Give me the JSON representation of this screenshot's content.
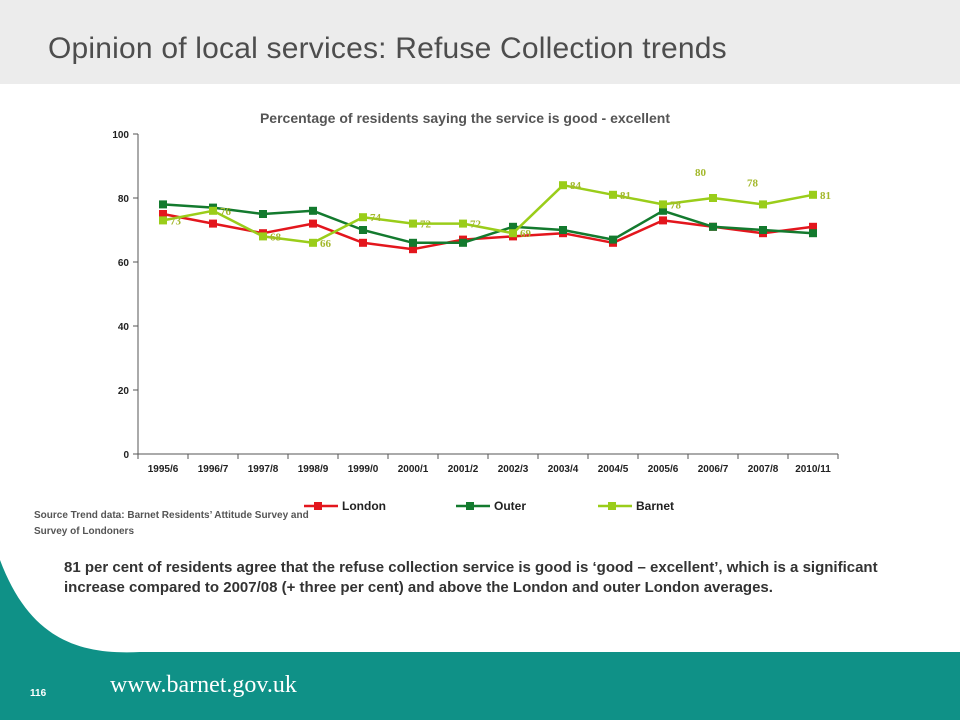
{
  "slide": {
    "title": "Opinion of local services: Refuse Collection trends",
    "source": "Source Trend data:  Barnet  Residents’ Attitude  Survey and Survey of Londoners",
    "summary": "81 per cent of residents agree that the refuse collection service is good is  ‘good – excellent’, which is  a significant increase compared to 2007/08 (+ three per cent) and above the London and outer London averages.",
    "footer_url": "www.barnet.gov.uk",
    "page_number": "116"
  },
  "colors": {
    "title_band": "#ececec",
    "teal": "#0f9187",
    "London": "#e3161d",
    "Outer": "#137a2e",
    "Barnet": "#9acd1a",
    "Barnet_label": "#a3b82b"
  },
  "chart_data": {
    "type": "line",
    "title": "Percentage of residents saying the service is good - excellent",
    "xlabel": "",
    "ylabel": "",
    "categories": [
      "1995/6",
      "1996/7",
      "1997/8",
      "1998/9",
      "1999/0",
      "2000/1",
      "2001/2",
      "2002/3",
      "2003/4",
      "2004/5",
      "2005/6",
      "2006/7",
      "2007/8",
      "2010/11"
    ],
    "ylim": [
      0,
      100
    ],
    "yticks": [
      0,
      20,
      40,
      60,
      80,
      100
    ],
    "grid": false,
    "legend": "bottom",
    "series": [
      {
        "name": "London",
        "values": [
          75,
          72,
          69,
          72,
          66,
          64,
          67,
          68,
          69,
          66,
          73,
          71,
          69,
          71
        ]
      },
      {
        "name": "Outer",
        "values": [
          78,
          77,
          75,
          76,
          70,
          66,
          66,
          71,
          70,
          67,
          76,
          71,
          70,
          69
        ]
      },
      {
        "name": "Barnet",
        "values": [
          73,
          76,
          68,
          66,
          74,
          72,
          72,
          69,
          84,
          81,
          78,
          80,
          78,
          81
        ]
      }
    ],
    "data_labels": {
      "series": "Barnet",
      "values": [
        "73",
        "76",
        "68",
        "66",
        "74",
        "72",
        "72",
        "69",
        "84",
        "81",
        "78",
        "80",
        "78",
        "81"
      ]
    }
  }
}
